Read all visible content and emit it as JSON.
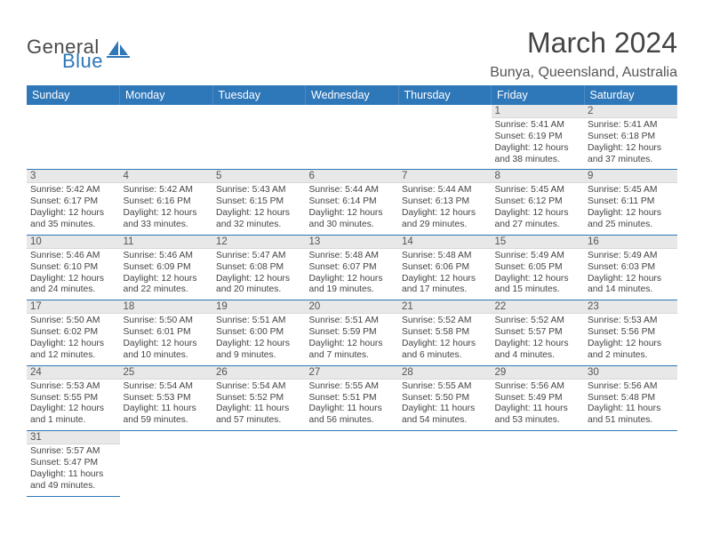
{
  "logo": {
    "text_general": "General",
    "text_blue": "Blue",
    "icon_color": "#2e77b8"
  },
  "header": {
    "title": "March 2024",
    "location": "Bunya, Queensland, Australia"
  },
  "styling": {
    "header_bg": "#2e77b8",
    "header_text": "#ffffff",
    "daynum_bg": "#e8e8e8",
    "cell_border": "#2e77b8",
    "title_fontsize": 32,
    "location_fontsize": 16,
    "body_fontsize": 10.3
  },
  "calendar": {
    "columns": [
      "Sunday",
      "Monday",
      "Tuesday",
      "Wednesday",
      "Thursday",
      "Friday",
      "Saturday"
    ],
    "first_weekday_index": 5,
    "days": [
      {
        "n": 1,
        "sunrise": "5:41 AM",
        "sunset": "6:19 PM",
        "daylight": "12 hours and 38 minutes."
      },
      {
        "n": 2,
        "sunrise": "5:41 AM",
        "sunset": "6:18 PM",
        "daylight": "12 hours and 37 minutes."
      },
      {
        "n": 3,
        "sunrise": "5:42 AM",
        "sunset": "6:17 PM",
        "daylight": "12 hours and 35 minutes."
      },
      {
        "n": 4,
        "sunrise": "5:42 AM",
        "sunset": "6:16 PM",
        "daylight": "12 hours and 33 minutes."
      },
      {
        "n": 5,
        "sunrise": "5:43 AM",
        "sunset": "6:15 PM",
        "daylight": "12 hours and 32 minutes."
      },
      {
        "n": 6,
        "sunrise": "5:44 AM",
        "sunset": "6:14 PM",
        "daylight": "12 hours and 30 minutes."
      },
      {
        "n": 7,
        "sunrise": "5:44 AM",
        "sunset": "6:13 PM",
        "daylight": "12 hours and 29 minutes."
      },
      {
        "n": 8,
        "sunrise": "5:45 AM",
        "sunset": "6:12 PM",
        "daylight": "12 hours and 27 minutes."
      },
      {
        "n": 9,
        "sunrise": "5:45 AM",
        "sunset": "6:11 PM",
        "daylight": "12 hours and 25 minutes."
      },
      {
        "n": 10,
        "sunrise": "5:46 AM",
        "sunset": "6:10 PM",
        "daylight": "12 hours and 24 minutes."
      },
      {
        "n": 11,
        "sunrise": "5:46 AM",
        "sunset": "6:09 PM",
        "daylight": "12 hours and 22 minutes."
      },
      {
        "n": 12,
        "sunrise": "5:47 AM",
        "sunset": "6:08 PM",
        "daylight": "12 hours and 20 minutes."
      },
      {
        "n": 13,
        "sunrise": "5:48 AM",
        "sunset": "6:07 PM",
        "daylight": "12 hours and 19 minutes."
      },
      {
        "n": 14,
        "sunrise": "5:48 AM",
        "sunset": "6:06 PM",
        "daylight": "12 hours and 17 minutes."
      },
      {
        "n": 15,
        "sunrise": "5:49 AM",
        "sunset": "6:05 PM",
        "daylight": "12 hours and 15 minutes."
      },
      {
        "n": 16,
        "sunrise": "5:49 AM",
        "sunset": "6:03 PM",
        "daylight": "12 hours and 14 minutes."
      },
      {
        "n": 17,
        "sunrise": "5:50 AM",
        "sunset": "6:02 PM",
        "daylight": "12 hours and 12 minutes."
      },
      {
        "n": 18,
        "sunrise": "5:50 AM",
        "sunset": "6:01 PM",
        "daylight": "12 hours and 10 minutes."
      },
      {
        "n": 19,
        "sunrise": "5:51 AM",
        "sunset": "6:00 PM",
        "daylight": "12 hours and 9 minutes."
      },
      {
        "n": 20,
        "sunrise": "5:51 AM",
        "sunset": "5:59 PM",
        "daylight": "12 hours and 7 minutes."
      },
      {
        "n": 21,
        "sunrise": "5:52 AM",
        "sunset": "5:58 PM",
        "daylight": "12 hours and 6 minutes."
      },
      {
        "n": 22,
        "sunrise": "5:52 AM",
        "sunset": "5:57 PM",
        "daylight": "12 hours and 4 minutes."
      },
      {
        "n": 23,
        "sunrise": "5:53 AM",
        "sunset": "5:56 PM",
        "daylight": "12 hours and 2 minutes."
      },
      {
        "n": 24,
        "sunrise": "5:53 AM",
        "sunset": "5:55 PM",
        "daylight": "12 hours and 1 minute."
      },
      {
        "n": 25,
        "sunrise": "5:54 AM",
        "sunset": "5:53 PM",
        "daylight": "11 hours and 59 minutes."
      },
      {
        "n": 26,
        "sunrise": "5:54 AM",
        "sunset": "5:52 PM",
        "daylight": "11 hours and 57 minutes."
      },
      {
        "n": 27,
        "sunrise": "5:55 AM",
        "sunset": "5:51 PM",
        "daylight": "11 hours and 56 minutes."
      },
      {
        "n": 28,
        "sunrise": "5:55 AM",
        "sunset": "5:50 PM",
        "daylight": "11 hours and 54 minutes."
      },
      {
        "n": 29,
        "sunrise": "5:56 AM",
        "sunset": "5:49 PM",
        "daylight": "11 hours and 53 minutes."
      },
      {
        "n": 30,
        "sunrise": "5:56 AM",
        "sunset": "5:48 PM",
        "daylight": "11 hours and 51 minutes."
      },
      {
        "n": 31,
        "sunrise": "5:57 AM",
        "sunset": "5:47 PM",
        "daylight": "11 hours and 49 minutes."
      }
    ],
    "labels": {
      "sunrise": "Sunrise:",
      "sunset": "Sunset:",
      "daylight": "Daylight:"
    }
  }
}
